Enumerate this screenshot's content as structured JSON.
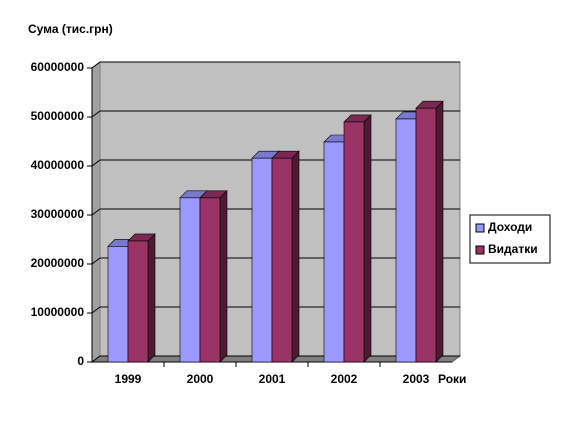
{
  "chart_data": {
    "type": "bar3d",
    "title": "Сума (тис.грн)",
    "x_label": "Роки",
    "categories": [
      "1999",
      "2000",
      "2001",
      "2002",
      "2003"
    ],
    "series": [
      {
        "name": "Доходи",
        "color": "#9999ff",
        "values": [
          23600000,
          33500000,
          41600000,
          44900000,
          49600000
        ]
      },
      {
        "name": "Видатки",
        "color": "#993366",
        "values": [
          24700000,
          33500000,
          41600000,
          49000000,
          51800000
        ]
      }
    ],
    "ylim": [
      0,
      60000000
    ],
    "yticks": [
      0,
      10000000,
      20000000,
      30000000,
      40000000,
      50000000,
      60000000
    ],
    "grid": true,
    "legend": "right"
  }
}
